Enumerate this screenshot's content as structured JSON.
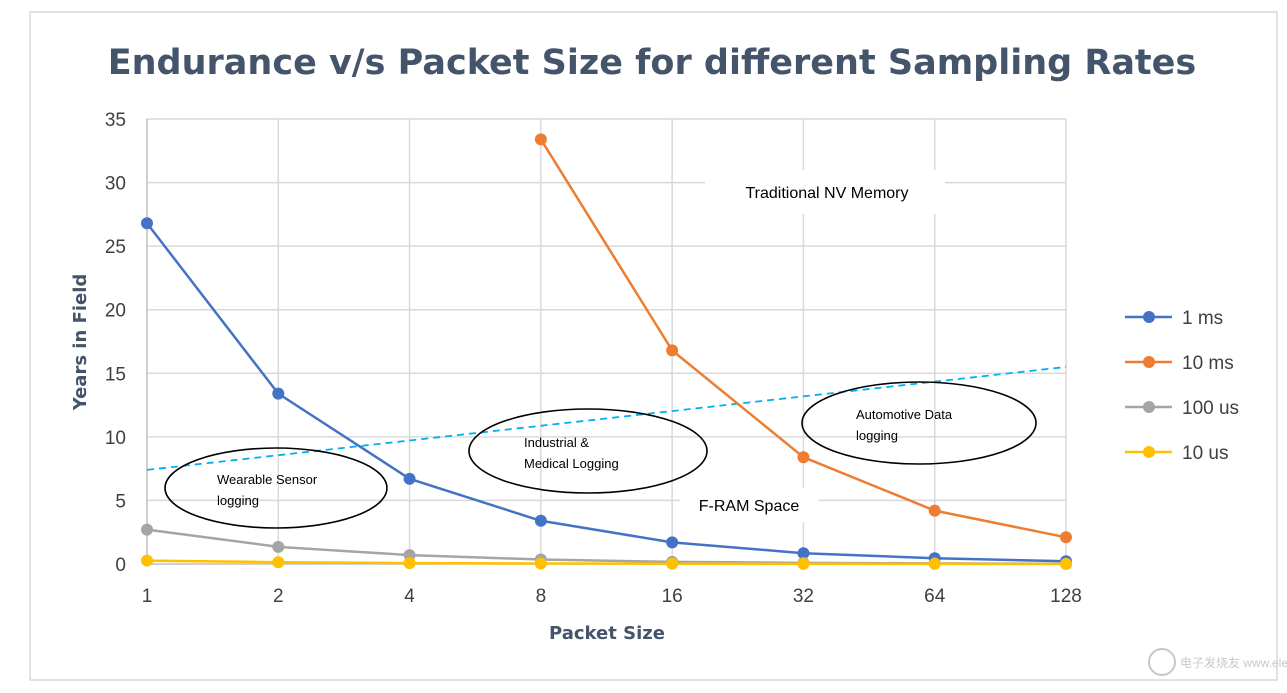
{
  "chart_data": {
    "type": "line",
    "title": "Endurance v/s Packet Size for different Sampling Rates",
    "xlabel": "Packet Size",
    "ylabel": "Years in Field",
    "categories": [
      "1",
      "2",
      "4",
      "8",
      "16",
      "32",
      "64",
      "128"
    ],
    "ylim": [
      0,
      35
    ],
    "yticks": [
      0,
      5,
      10,
      15,
      20,
      25,
      30,
      35
    ],
    "grid": true,
    "legend_position": "right",
    "series": [
      {
        "name": "1 ms",
        "color": "#4472c4",
        "values": [
          26.8,
          13.4,
          6.7,
          3.4,
          1.7,
          0.85,
          0.45,
          0.22
        ]
      },
      {
        "name": "10 ms",
        "color": "#ed7d31",
        "values": [
          null,
          null,
          null,
          33.4,
          16.8,
          8.4,
          4.2,
          2.1
        ]
      },
      {
        "name": "100 us",
        "color": "#a5a5a5",
        "values": [
          2.7,
          1.35,
          0.7,
          0.35,
          0.17,
          0.09,
          0.05,
          0.02
        ]
      },
      {
        "name": "10 us",
        "color": "#ffc000",
        "values": [
          0.27,
          0.14,
          0.07,
          0.04,
          0.02,
          0.01,
          0.01,
          0.0
        ]
      }
    ],
    "threshold_line": {
      "color": "#00b0f0",
      "start": {
        "x": "1",
        "y": 7.4
      },
      "end": {
        "x": "128",
        "y": 15.5
      }
    },
    "region_labels": {
      "above": "Traditional NV Memory",
      "below": "F-RAM Space"
    },
    "annotations": [
      {
        "lines": [
          "Wearable Sensor",
          "logging"
        ]
      },
      {
        "lines": [
          "Industrial &",
          "Medical Logging"
        ]
      },
      {
        "lines": [
          "Automotive Data",
          "logging"
        ]
      }
    ]
  },
  "watermark": "电子发烧友 www.elecfans.com"
}
